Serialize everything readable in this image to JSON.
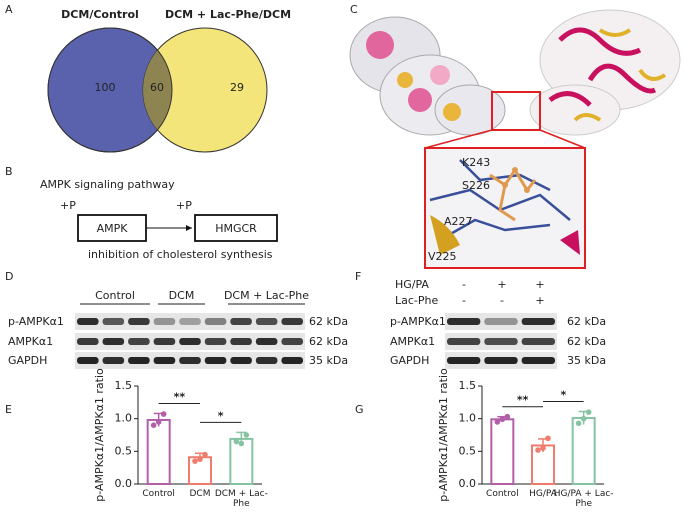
{
  "panel_labels": [
    "A",
    "B",
    "C",
    "D",
    "E",
    "F",
    "G"
  ],
  "venn": {
    "sets": [
      {
        "name": "DCM/Control",
        "color": "#3b4aa0",
        "fill": "#5b62ad",
        "only": "100"
      },
      {
        "name": "DCM + Lac-Phe/DCM",
        "color": "#8a7a1e",
        "fill": "#f3e579",
        "only": "29"
      }
    ],
    "overlap": "60",
    "overlap_fill": "#8e8452"
  },
  "pathway": {
    "title": "AMPK signaling pathway",
    "phospho_1": "+P",
    "node_1": "AMPK",
    "phospho_2": "+P",
    "node_2": "HMGCR",
    "note": "inhibition of cholesterol synthesis"
  },
  "structure": {
    "residues": [
      "K243",
      "S226",
      "A227",
      "V225"
    ]
  },
  "blot_D": {
    "groups": [
      "Control",
      "DCM",
      "DCM + Lac-Phe"
    ],
    "rows": [
      "p-AMPKα1",
      "AMPKα1",
      "GAPDH"
    ],
    "sizes": [
      "62 kDa",
      "62 kDa",
      "35 kDa"
    ]
  },
  "blot_F": {
    "treatments": [
      {
        "name": "HG/PA",
        "signs": [
          "-",
          "+",
          "+"
        ]
      },
      {
        "name": "Lac-Phe",
        "signs": [
          "-",
          "-",
          "+"
        ]
      }
    ],
    "rows": [
      "p-AMPKα1",
      "AMPKα1",
      "GAPDH"
    ],
    "sizes": [
      "62 kDa",
      "62 kDa",
      "35 kDa"
    ]
  },
  "chart_data": [
    {
      "type": "bar",
      "y_label": "p-AMPKα1/AMPKα1 ratio",
      "categories": [
        "Control",
        "DCM",
        "DCM + Lac-Phe"
      ],
      "values": [
        0.98,
        0.41,
        0.69
      ],
      "errors": [
        0.1,
        0.06,
        0.1
      ],
      "points": [
        [
          0.9,
          1.07,
          0.95
        ],
        [
          0.35,
          0.45,
          0.38
        ],
        [
          0.65,
          0.75,
          0.62
        ]
      ],
      "colors": [
        "#b25ea8",
        "#ef7d6d",
        "#86c3a3"
      ],
      "significance": [
        "**",
        "*"
      ],
      "ylim": [
        0,
        1.5
      ],
      "yticks": [
        {
          "value": 0,
          "label": "0.0"
        },
        0.5,
        {
          "value": 1,
          "label": "1.0"
        },
        1.5
      ]
    },
    {
      "type": "bar",
      "y_label": "p-AMPKα1/AMPKα1 ratio",
      "categories": [
        "Control",
        "HG/PA",
        "HG/PA + Lac-Phe"
      ],
      "values": [
        0.99,
        0.59,
        1.01
      ],
      "errors": [
        0.04,
        0.1,
        0.1
      ],
      "points": [
        [
          0.95,
          1.03,
          0.99
        ],
        [
          0.52,
          0.7,
          0.55
        ],
        [
          0.93,
          1.1,
          1.0
        ]
      ],
      "colors": [
        "#b25ea8",
        "#ef7d6d",
        "#86c3a3"
      ],
      "significance": [
        "**",
        "*"
      ],
      "ylim": [
        0,
        1.5
      ],
      "yticks": [
        {
          "value": 0,
          "label": "0.0"
        },
        0.5,
        {
          "value": 1,
          "label": "1.0"
        },
        1.5
      ]
    }
  ]
}
